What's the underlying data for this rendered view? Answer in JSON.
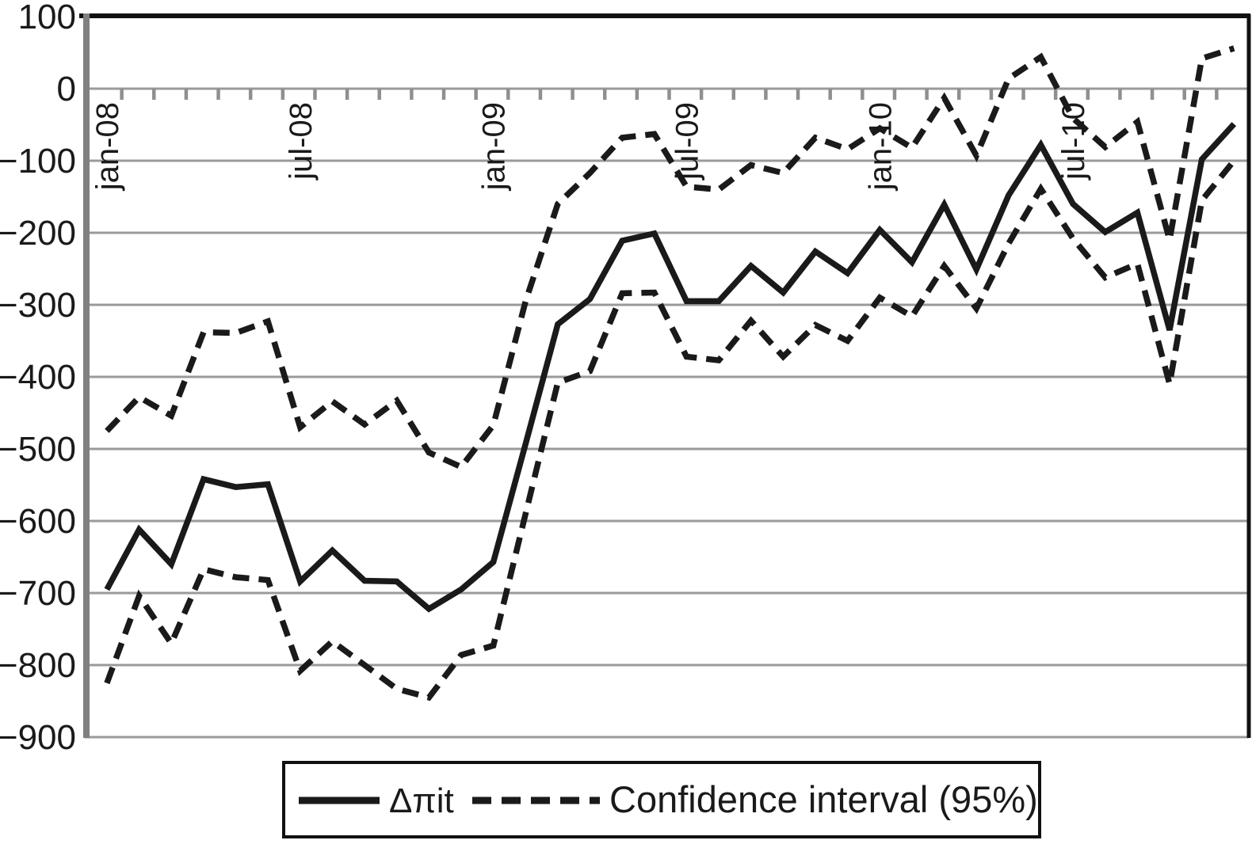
{
  "figure": {
    "background": "#ffffff",
    "type_note": "statistical line chart with 95% confidence band, monthly data jan-08 to dec-10"
  },
  "colors": {
    "line": "#1a1a1a",
    "grid": "#9a9a9a",
    "axis": "#808080",
    "tick": "#8f8f8f",
    "frame": "#111111",
    "text": "#1a1a1a"
  },
  "legend": {
    "items": [
      {
        "label": "Δπit",
        "style": "solid"
      },
      {
        "label": "Confidence interval (95%)",
        "style": "dashed"
      }
    ]
  },
  "chart_data": {
    "type": "line",
    "title": "",
    "xlabel": "",
    "ylabel": "",
    "ylim": [
      -900,
      100
    ],
    "grid": "horizontal",
    "legend_position": "bottom-center",
    "y_ticks": [
      100,
      0,
      -100,
      -200,
      -300,
      -400,
      -500,
      -600,
      -700,
      -800,
      -900
    ],
    "y_tick_labels": [
      "100",
      "0",
      "−100",
      "−200",
      "−300",
      "−400",
      "−500",
      "−600",
      "−700",
      "−800",
      "−900"
    ],
    "x_axis_at_value": 0,
    "x_tick_label_positions": [
      0,
      6,
      12,
      18,
      24,
      30
    ],
    "x_tick_labels": [
      "jan-08",
      "jul-08",
      "jan-09",
      "jul-09",
      "jan-10",
      "jul-10"
    ],
    "categories": [
      "jan-08",
      "feb-08",
      "mar-08",
      "apr-08",
      "may-08",
      "jun-08",
      "jul-08",
      "aug-08",
      "sep-08",
      "oct-08",
      "nov-08",
      "dec-08",
      "jan-09",
      "feb-09",
      "mar-09",
      "apr-09",
      "may-09",
      "jun-09",
      "jul-09",
      "aug-09",
      "sep-09",
      "oct-09",
      "nov-09",
      "dec-09",
      "jan-10",
      "feb-10",
      "mar-10",
      "apr-10",
      "may-10",
      "jun-10",
      "jul-10",
      "aug-10",
      "sep-10",
      "oct-10",
      "nov-10",
      "dec-10"
    ],
    "series": [
      {
        "name": "Δπit",
        "style": "solid",
        "values": [
          -695,
          -612,
          -660,
          -542,
          -553,
          -549,
          -684,
          -641,
          -683,
          -684,
          -722,
          -695,
          -657,
          -493,
          -327,
          -292,
          -211,
          -201,
          -295,
          -295,
          -246,
          -283,
          -226,
          -256,
          -196,
          -241,
          -161,
          -251,
          -148,
          -78,
          -160,
          -199,
          -172,
          -335,
          -98,
          -49
        ]
      },
      {
        "name": "Confidence interval (95%) upper bound",
        "style": "dashed",
        "values": [
          -475,
          -428,
          -454,
          -338,
          -339,
          -323,
          -470,
          -434,
          -466,
          -433,
          -505,
          -525,
          -467,
          -295,
          -160,
          -117,
          -68,
          -63,
          -136,
          -140,
          -106,
          -117,
          -68,
          -84,
          -55,
          -82,
          -13,
          -93,
          14,
          44,
          -41,
          -81,
          -46,
          -210,
          42,
          56
        ]
      },
      {
        "name": "Confidence interval (95%) lower bound",
        "style": "dashed",
        "values": [
          -825,
          -704,
          -770,
          -667,
          -678,
          -682,
          -808,
          -767,
          -800,
          -833,
          -845,
          -786,
          -773,
          -590,
          -408,
          -392,
          -284,
          -283,
          -372,
          -377,
          -322,
          -372,
          -328,
          -350,
          -290,
          -316,
          -246,
          -305,
          -215,
          -139,
          -208,
          -262,
          -243,
          -410,
          -155,
          -100
        ]
      }
    ]
  }
}
